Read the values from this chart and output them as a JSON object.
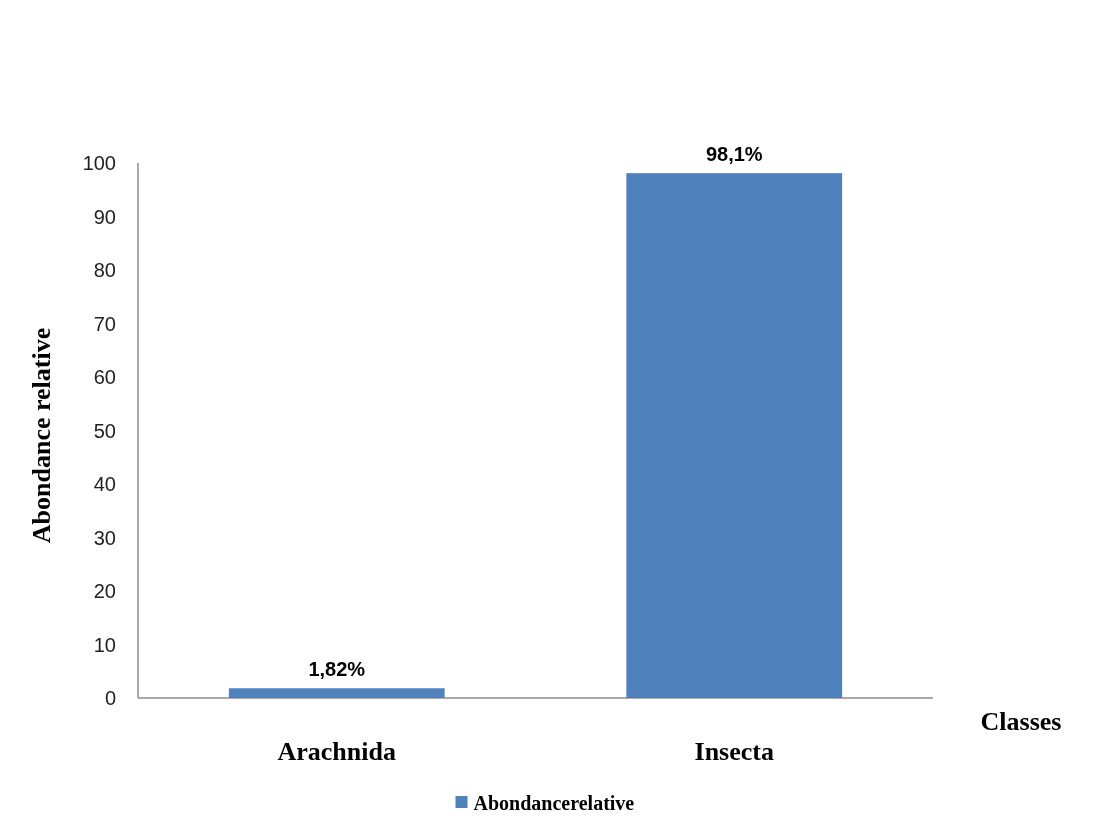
{
  "chart_data": {
    "type": "bar",
    "categories": [
      "Arachnida",
      "Insecta"
    ],
    "series": [
      {
        "name": "Abondancerelative",
        "color": "#4f81bd",
        "values": [
          1.82,
          98.1
        ],
        "value_labels": [
          "1,82%",
          "98,1%"
        ]
      }
    ],
    "xlabel": "Classes",
    "ylabel": "Abondance relative",
    "ylim": [
      0,
      100
    ],
    "yticks": [
      0,
      10,
      20,
      30,
      40,
      50,
      60,
      70,
      80,
      90,
      100
    ],
    "grid": false,
    "legend": "bottom"
  }
}
